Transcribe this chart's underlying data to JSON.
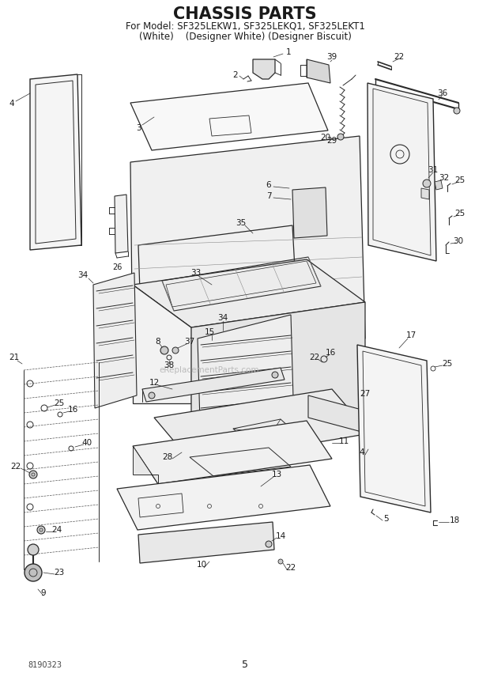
{
  "title": "CHASSIS PARTS",
  "subtitle1": "For Model: SF325LEKW1, SF325LEKQ1, SF325LEKT1",
  "subtitle2": "(White)    (Designer White) (Designer Biscuit)",
  "doc_number": "8190323",
  "page_number": "5",
  "watermark": "eReplacementParts.com",
  "bg_color": "#ffffff",
  "line_color": "#2a2a2a",
  "text_color": "#1a1a1a",
  "title_fontsize": 15,
  "subtitle_fontsize": 8.5,
  "label_fontsize": 8,
  "fig_width": 6.2,
  "fig_height": 8.56,
  "dpi": 100
}
